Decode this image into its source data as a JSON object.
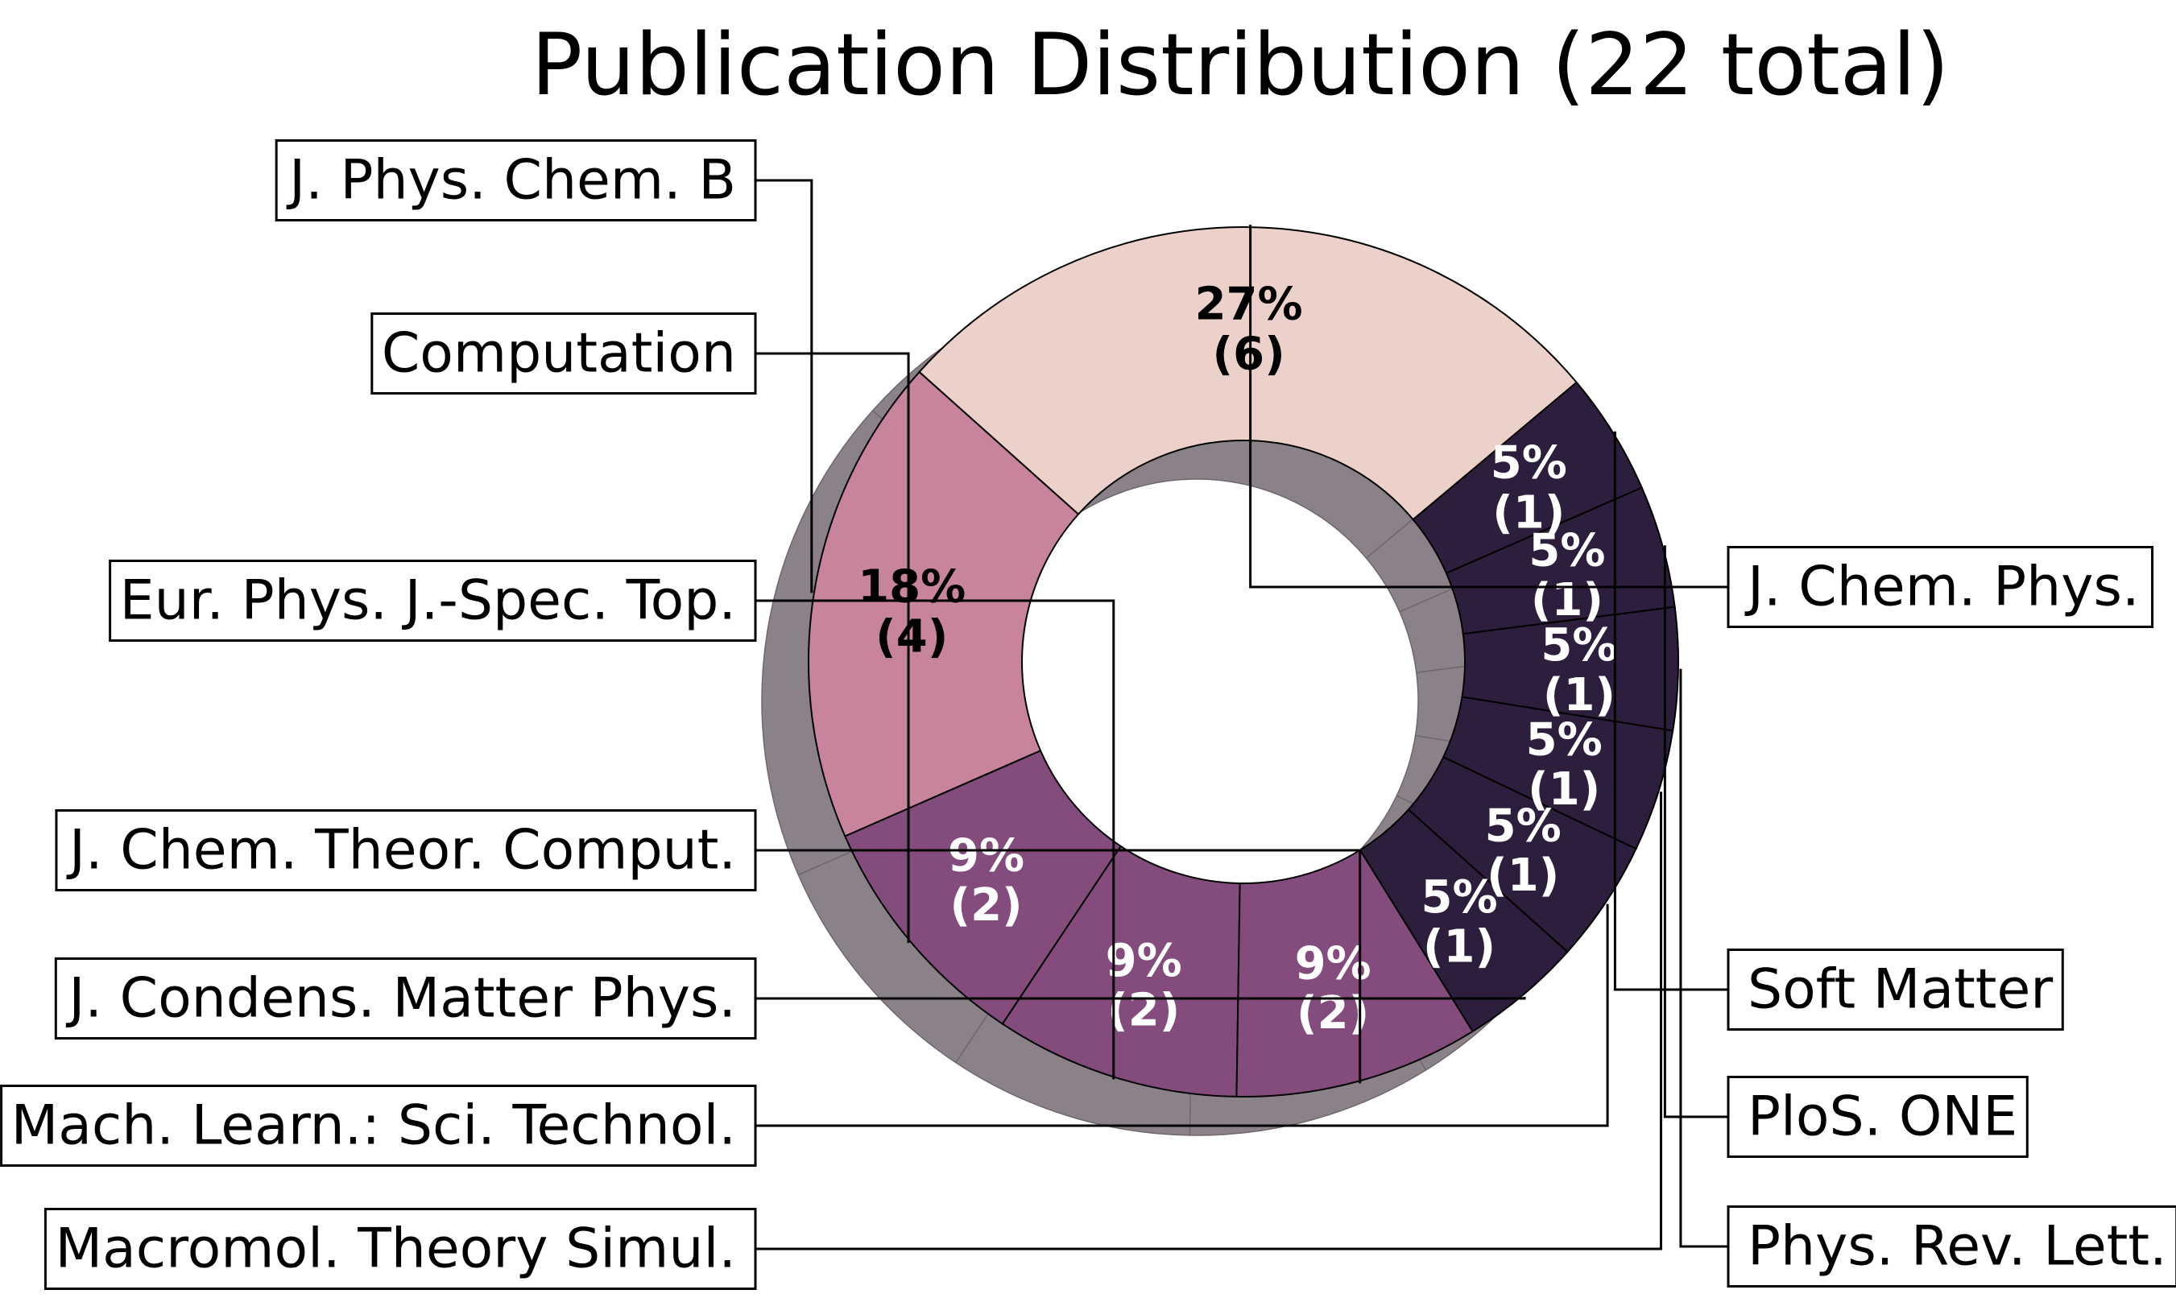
{
  "chart_data": {
    "type": "pie",
    "title": "Publication Distribution (22 total)",
    "total": 22,
    "slices": [
      {
        "label": "J. Chem. Phys.",
        "count": 6,
        "percent": "27%",
        "count_text": "(6)",
        "color": "#ecd1ca",
        "text_color": "#000000"
      },
      {
        "label": "J. Phys. Chem. B",
        "count": 4,
        "percent": "18%",
        "count_text": "(4)",
        "color": "#c8849d",
        "text_color": "#000000"
      },
      {
        "label": "Computation",
        "count": 2,
        "percent": "9%",
        "count_text": "(2)",
        "color": "#844c7c",
        "text_color": "#ffffff"
      },
      {
        "label": "Eur. Phys. J.-Spec. Top.",
        "count": 2,
        "percent": "9%",
        "count_text": "(2)",
        "color": "#844c7c",
        "text_color": "#ffffff"
      },
      {
        "label": "J. Chem. Theor. Comput.",
        "count": 2,
        "percent": "9%",
        "count_text": "(2)",
        "color": "#844c7c",
        "text_color": "#ffffff"
      },
      {
        "label": "J. Condens. Matter Phys.",
        "count": 1,
        "percent": "5%",
        "count_text": "(1)",
        "color": "#2d1e3e",
        "text_color": "#ffffff"
      },
      {
        "label": "Mach. Learn.: Sci. Technol.",
        "count": 1,
        "percent": "5%",
        "count_text": "(1)",
        "color": "#2d1e3e",
        "text_color": "#ffffff"
      },
      {
        "label": "Macromol. Theory Simul.",
        "count": 1,
        "percent": "5%",
        "count_text": "(1)",
        "color": "#2d1e3e",
        "text_color": "#ffffff"
      },
      {
        "label": "Phys. Rev. Lett.",
        "count": 1,
        "percent": "5%",
        "count_text": "(1)",
        "color": "#2d1e3e",
        "text_color": "#ffffff"
      },
      {
        "label": "PloS. ONE",
        "count": 1,
        "percent": "5%",
        "count_text": "(1)",
        "color": "#2d1e3e",
        "text_color": "#ffffff"
      },
      {
        "label": "Soft Matter",
        "count": 1,
        "percent": "5%",
        "count_text": "(1)",
        "color": "#2d1e3e",
        "text_color": "#ffffff"
      }
    ],
    "style": "donut with drop shadow",
    "shadow_color": "#8a8288",
    "start_angle_deg": 40,
    "direction": "counterclockwise"
  }
}
